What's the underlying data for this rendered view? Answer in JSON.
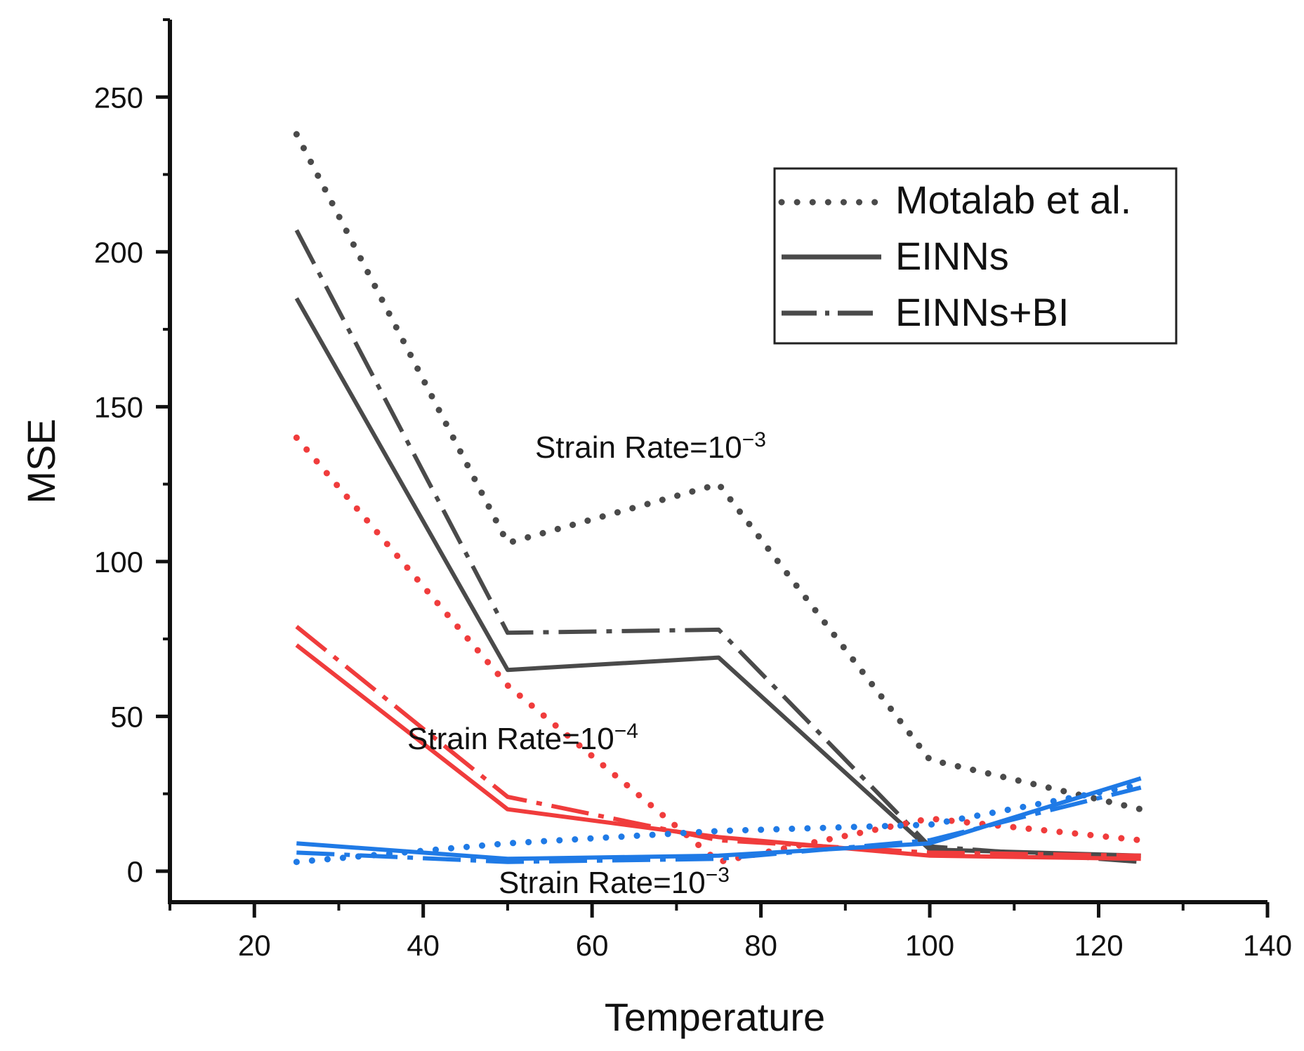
{
  "chart_data": {
    "type": "line",
    "xlabel": "Temperature",
    "ylabel": "MSE",
    "xlim": [
      10,
      140
    ],
    "ylim": [
      -10,
      275
    ],
    "x": [
      25,
      50,
      75,
      100,
      125
    ],
    "xticks": [
      20,
      40,
      60,
      80,
      100,
      120,
      140
    ],
    "yticks": [
      0,
      50,
      100,
      150,
      200,
      250
    ],
    "xtick_labels": [
      "20",
      "40",
      "60",
      "80",
      "100",
      "120",
      "140"
    ],
    "ytick_labels": [
      "0",
      "50",
      "100",
      "150",
      "200",
      "250"
    ],
    "series": [
      {
        "name": "Motalab et al. (Strain Rate=10^-3, gray)",
        "group": "gray",
        "style": "dotted",
        "values": [
          238,
          106,
          125,
          36,
          20
        ]
      },
      {
        "name": "EINNs (Strain Rate=10^-3, gray)",
        "group": "gray",
        "style": "solid",
        "values": [
          185,
          65,
          69,
          7,
          5
        ]
      },
      {
        "name": "EINNs+BI (Strain Rate=10^-3, gray)",
        "group": "gray",
        "style": "dashdot",
        "values": [
          207,
          77,
          78,
          8,
          3
        ]
      },
      {
        "name": "Motalab et al. (Strain Rate=10^-4, red)",
        "group": "red",
        "style": "dotted",
        "values": [
          140,
          60,
          3,
          17,
          10
        ]
      },
      {
        "name": "EINNs (Strain Rate=10^-4, red)",
        "group": "red",
        "style": "solid",
        "values": [
          73,
          20,
          11,
          5,
          4
        ]
      },
      {
        "name": "EINNs+BI (Strain Rate=10^-4, red)",
        "group": "red",
        "style": "dashdot",
        "values": [
          79,
          24,
          10,
          6,
          5
        ]
      },
      {
        "name": "Motalab et al. (Strain Rate=10^-3, blue)",
        "group": "blue",
        "style": "dotted",
        "values": [
          3,
          9,
          13,
          15,
          28
        ]
      },
      {
        "name": "EINNs (Strain Rate=10^-3, blue)",
        "group": "blue",
        "style": "solid",
        "values": [
          9,
          4,
          5,
          9,
          30
        ]
      },
      {
        "name": "EINNs+BI (Strain Rate=10^-3, blue)",
        "group": "blue",
        "style": "dashdot",
        "values": [
          6,
          3,
          4,
          10,
          27
        ]
      }
    ],
    "colors": {
      "gray": "#4a4a4a",
      "red": "#f03c3c",
      "blue": "#1f7ae6"
    },
    "legend": {
      "position": "top-right",
      "entries": [
        {
          "label": "Motalab et al.",
          "style": "dotted"
        },
        {
          "label": "EINNs",
          "style": "solid"
        },
        {
          "label": "EINNs+BI",
          "style": "dashdot"
        }
      ]
    },
    "annotations": [
      {
        "text": "Strain Rate=10",
        "sup": "−3",
        "near_series": "gray"
      },
      {
        "text": "Strain Rate=10",
        "sup": "−4",
        "near_series": "red"
      },
      {
        "text": "Strain Rate=10",
        "sup": "−3",
        "near_series": "blue"
      }
    ]
  }
}
